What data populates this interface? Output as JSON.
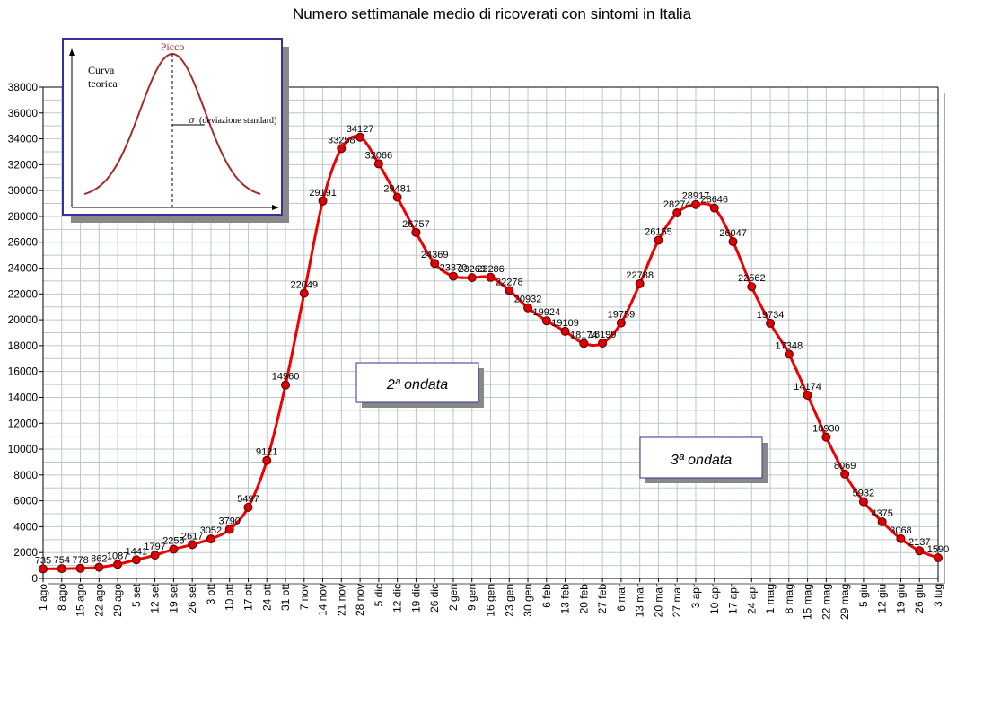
{
  "chart_data": {
    "type": "line",
    "title": "Numero settimanale medio di ricoverati con sintomi in Italia",
    "xlabel": "",
    "ylabel": "",
    "ylim": [
      0,
      38000
    ],
    "ytick_step": 2000,
    "grid": true,
    "categories": [
      "1 ago",
      "8 ago",
      "15 ago",
      "22 ago",
      "29 ago",
      "5 set",
      "12 set",
      "19 set",
      "26 set",
      "3 ott",
      "10 ott",
      "17 ott",
      "24 ott",
      "31 ott",
      "7 nov",
      "14 nov",
      "21 nov",
      "28 nov",
      "5 dic",
      "12 dic",
      "19 dic",
      "26 dic",
      "2 gen",
      "9 gen",
      "16 gen",
      "23 gen",
      "30 gen",
      "6 feb",
      "13 feb",
      "20 feb",
      "27 feb",
      "6 mar",
      "13 mar",
      "20 mar",
      "27 mar",
      "3 apr",
      "10 apr",
      "17 apr",
      "24 apr",
      "1 mag",
      "8 mag",
      "15 mag",
      "22 mag",
      "29 mag",
      "5 giu",
      "12 giu",
      "19 giu",
      "26 giu",
      "3 lug"
    ],
    "values": [
      735,
      754,
      778,
      862,
      1087,
      1441,
      1797,
      2255,
      2617,
      3052,
      3790,
      5497,
      9121,
      14960,
      22049,
      29191,
      33258,
      34127,
      32066,
      29481,
      26757,
      24369,
      23370,
      23263,
      23286,
      22278,
      20932,
      19924,
      19109,
      18174,
      18199,
      19759,
      22788,
      26155,
      28274,
      28917,
      28646,
      26047,
      22562,
      19734,
      17348,
      14174,
      10930,
      8069,
      5932,
      4375,
      3068,
      2137,
      1590
    ],
    "series_color": "#ee0000",
    "marker_color": "#dd0000",
    "annotations": [
      {
        "text": "2ª ondata"
      },
      {
        "text": "3ª ondata"
      }
    ],
    "inset": {
      "peak_label": "Picco",
      "curve_label_1": "Curva",
      "curve_label_2": "teorica",
      "sigma_label": "σ",
      "sigma_desc": "(deviazione standard)"
    }
  }
}
